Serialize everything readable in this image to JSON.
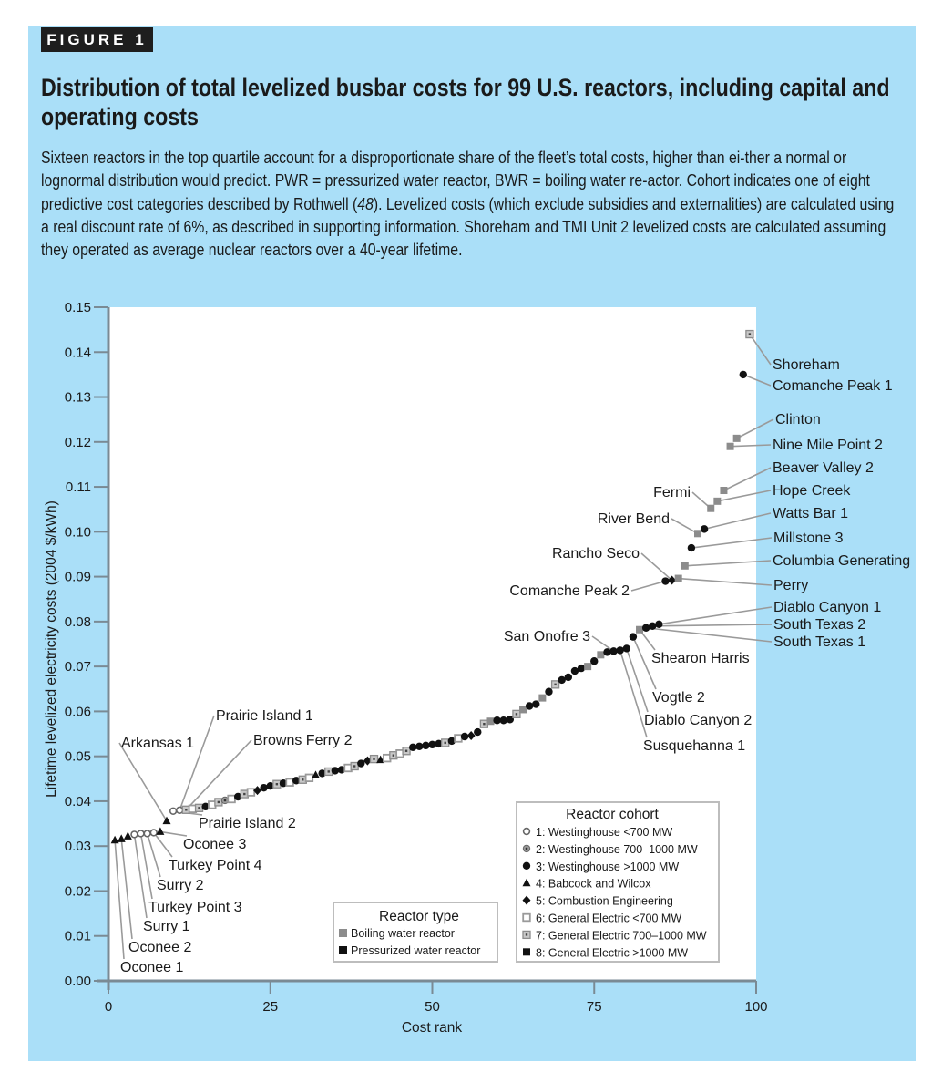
{
  "figure_tag": "FIGURE 1",
  "title": "Distribution of total levelized busbar costs for 99 U.S. reactors, including capital and operating costs",
  "caption": {
    "part1": "Sixteen reactors in the top quartile account for a disproportionate share of the fleet’s total costs, higher than ei-ther a normal or lognormal distribution would predict. PWR = pressurized water reactor, BWR = boiling water re-actor. Cohort indicates one of eight predictive cost categories described by Rothwell (",
    "ref": "48",
    "part2": "). Levelized costs (which exclude subsidies and externalities) are calculated using a real discount rate of 6%, as described in supporting information. Shoreham and TMI Unit 2 levelized costs are calculated assuming they operated as average nuclear reactors over a 40-year lifetime."
  },
  "colors": {
    "panel": "#aadff8",
    "plot_bg": "#ffffff",
    "bwr": "#8c8c8c",
    "pwr": "#111111",
    "axis": "#7a8a94",
    "leader": "#9a9a9a"
  },
  "chart_data": {
    "type": "scatter",
    "xlabel": "Cost rank",
    "ylabel": "Lifetime levelized electricity costs (2004 $/kWh)",
    "xlim": [
      0,
      100
    ],
    "ylim": [
      0,
      0.15
    ],
    "xticks": [
      "0",
      "25",
      "50",
      "75",
      "100"
    ],
    "xtick_values": [
      0,
      25,
      50,
      75,
      100
    ],
    "yticks": [
      "0.00",
      "0.01",
      "0.02",
      "0.03",
      "0.04",
      "0.05",
      "0.06",
      "0.07",
      "0.08",
      "0.09",
      "0.10",
      "0.11",
      "0.12",
      "0.13",
      "0.14",
      "0.15"
    ],
    "ytick_values": [
      0,
      0.01,
      0.02,
      0.03,
      0.04,
      0.05,
      0.06,
      0.07,
      0.08,
      0.09,
      0.1,
      0.11,
      0.12,
      0.13,
      0.14,
      0.15
    ],
    "grid": false,
    "series": [
      {
        "name": "Boiling water reactor",
        "type": "BWR"
      },
      {
        "name": "Pressurized water reactor",
        "type": "PWR"
      }
    ],
    "points": [
      {
        "rank": 1,
        "value": 0.0313,
        "type": "PWR",
        "cohort": 4
      },
      {
        "rank": 2,
        "value": 0.0316,
        "type": "PWR",
        "cohort": 4
      },
      {
        "rank": 3,
        "value": 0.0322,
        "type": "PWR",
        "cohort": 4
      },
      {
        "rank": 4,
        "value": 0.0326,
        "type": "PWR",
        "cohort": 1
      },
      {
        "rank": 5,
        "value": 0.0328,
        "type": "PWR",
        "cohort": 1
      },
      {
        "rank": 6,
        "value": 0.0328,
        "type": "PWR",
        "cohort": 1
      },
      {
        "rank": 7,
        "value": 0.033,
        "type": "PWR",
        "cohort": 1
      },
      {
        "rank": 8,
        "value": 0.0332,
        "type": "PWR",
        "cohort": 4
      },
      {
        "rank": 9,
        "value": 0.0356,
        "type": "PWR",
        "cohort": 4
      },
      {
        "rank": 10,
        "value": 0.0378,
        "type": "PWR",
        "cohort": 1
      },
      {
        "rank": 11,
        "value": 0.038,
        "type": "PWR",
        "cohort": 1
      },
      {
        "rank": 12,
        "value": 0.0381,
        "type": "BWR",
        "cohort": 7
      },
      {
        "rank": 13,
        "value": 0.0383,
        "type": "BWR",
        "cohort": 6
      },
      {
        "rank": 14,
        "value": 0.0385,
        "type": "BWR",
        "cohort": 7
      },
      {
        "rank": 15,
        "value": 0.0388,
        "type": "PWR",
        "cohort": 3
      },
      {
        "rank": 16,
        "value": 0.0392,
        "type": "BWR",
        "cohort": 6
      },
      {
        "rank": 17,
        "value": 0.0398,
        "type": "BWR",
        "cohort": 7
      },
      {
        "rank": 18,
        "value": 0.0402,
        "type": "PWR",
        "cohort": 2
      },
      {
        "rank": 19,
        "value": 0.0405,
        "type": "BWR",
        "cohort": 6
      },
      {
        "rank": 20,
        "value": 0.041,
        "type": "PWR",
        "cohort": 3
      },
      {
        "rank": 21,
        "value": 0.0416,
        "type": "BWR",
        "cohort": 7
      },
      {
        "rank": 22,
        "value": 0.042,
        "type": "BWR",
        "cohort": 6
      },
      {
        "rank": 23,
        "value": 0.0424,
        "type": "PWR",
        "cohort": 5
      },
      {
        "rank": 24,
        "value": 0.043,
        "type": "PWR",
        "cohort": 3
      },
      {
        "rank": 25,
        "value": 0.0434,
        "type": "PWR",
        "cohort": 3
      },
      {
        "rank": 26,
        "value": 0.0438,
        "type": "BWR",
        "cohort": 7
      },
      {
        "rank": 27,
        "value": 0.044,
        "type": "PWR",
        "cohort": 3
      },
      {
        "rank": 28,
        "value": 0.0442,
        "type": "BWR",
        "cohort": 6
      },
      {
        "rank": 29,
        "value": 0.0446,
        "type": "PWR",
        "cohort": 3
      },
      {
        "rank": 30,
        "value": 0.0448,
        "type": "BWR",
        "cohort": 7
      },
      {
        "rank": 31,
        "value": 0.0452,
        "type": "BWR",
        "cohort": 6
      },
      {
        "rank": 32,
        "value": 0.0458,
        "type": "PWR",
        "cohort": 4
      },
      {
        "rank": 33,
        "value": 0.0462,
        "type": "PWR",
        "cohort": 3
      },
      {
        "rank": 34,
        "value": 0.0466,
        "type": "BWR",
        "cohort": 7
      },
      {
        "rank": 35,
        "value": 0.0468,
        "type": "PWR",
        "cohort": 3
      },
      {
        "rank": 36,
        "value": 0.047,
        "type": "PWR",
        "cohort": 3
      },
      {
        "rank": 37,
        "value": 0.0474,
        "type": "BWR",
        "cohort": 6
      },
      {
        "rank": 38,
        "value": 0.0478,
        "type": "BWR",
        "cohort": 7
      },
      {
        "rank": 39,
        "value": 0.0484,
        "type": "PWR",
        "cohort": 3
      },
      {
        "rank": 40,
        "value": 0.049,
        "type": "PWR",
        "cohort": 5
      },
      {
        "rank": 41,
        "value": 0.0494,
        "type": "BWR",
        "cohort": 7
      },
      {
        "rank": 42,
        "value": 0.0492,
        "type": "PWR",
        "cohort": 4
      },
      {
        "rank": 43,
        "value": 0.0496,
        "type": "BWR",
        "cohort": 6
      },
      {
        "rank": 44,
        "value": 0.0502,
        "type": "BWR",
        "cohort": 7
      },
      {
        "rank": 45,
        "value": 0.0506,
        "type": "BWR",
        "cohort": 6
      },
      {
        "rank": 46,
        "value": 0.0512,
        "type": "BWR",
        "cohort": 7
      },
      {
        "rank": 47,
        "value": 0.052,
        "type": "PWR",
        "cohort": 3
      },
      {
        "rank": 48,
        "value": 0.0522,
        "type": "PWR",
        "cohort": 3
      },
      {
        "rank": 49,
        "value": 0.0524,
        "type": "PWR",
        "cohort": 3
      },
      {
        "rank": 50,
        "value": 0.0526,
        "type": "PWR",
        "cohort": 3
      },
      {
        "rank": 51,
        "value": 0.0528,
        "type": "PWR",
        "cohort": 3
      },
      {
        "rank": 52,
        "value": 0.053,
        "type": "BWR",
        "cohort": 7
      },
      {
        "rank": 53,
        "value": 0.0534,
        "type": "PWR",
        "cohort": 3
      },
      {
        "rank": 54,
        "value": 0.054,
        "type": "BWR",
        "cohort": 6
      },
      {
        "rank": 55,
        "value": 0.0544,
        "type": "PWR",
        "cohort": 3
      },
      {
        "rank": 56,
        "value": 0.0546,
        "type": "PWR",
        "cohort": 5
      },
      {
        "rank": 57,
        "value": 0.0554,
        "type": "PWR",
        "cohort": 3
      },
      {
        "rank": 58,
        "value": 0.0572,
        "type": "BWR",
        "cohort": 7
      },
      {
        "rank": 59,
        "value": 0.0578,
        "type": "BWR",
        "cohort": 8
      },
      {
        "rank": 60,
        "value": 0.058,
        "type": "PWR",
        "cohort": 3
      },
      {
        "rank": 61,
        "value": 0.058,
        "type": "PWR",
        "cohort": 3
      },
      {
        "rank": 62,
        "value": 0.0582,
        "type": "PWR",
        "cohort": 3
      },
      {
        "rank": 63,
        "value": 0.0594,
        "type": "BWR",
        "cohort": 7
      },
      {
        "rank": 64,
        "value": 0.0604,
        "type": "BWR",
        "cohort": 8
      },
      {
        "rank": 65,
        "value": 0.0612,
        "type": "PWR",
        "cohort": 3
      },
      {
        "rank": 66,
        "value": 0.0616,
        "type": "PWR",
        "cohort": 3
      },
      {
        "rank": 67,
        "value": 0.063,
        "type": "BWR",
        "cohort": 8
      },
      {
        "rank": 68,
        "value": 0.0644,
        "type": "PWR",
        "cohort": 3
      },
      {
        "rank": 69,
        "value": 0.066,
        "type": "BWR",
        "cohort": 7
      },
      {
        "rank": 70,
        "value": 0.067,
        "type": "PWR",
        "cohort": 3
      },
      {
        "rank": 71,
        "value": 0.0676,
        "type": "PWR",
        "cohort": 3
      },
      {
        "rank": 72,
        "value": 0.069,
        "type": "PWR",
        "cohort": 3
      },
      {
        "rank": 73,
        "value": 0.0696,
        "type": "PWR",
        "cohort": 3
      },
      {
        "rank": 74,
        "value": 0.07,
        "type": "BWR",
        "cohort": 8
      },
      {
        "rank": 75,
        "value": 0.0712,
        "type": "PWR",
        "cohort": 3
      },
      {
        "rank": 76,
        "value": 0.0726,
        "type": "BWR",
        "cohort": 8
      },
      {
        "rank": 77,
        "value": 0.0732,
        "type": "PWR",
        "cohort": 3
      },
      {
        "rank": 78,
        "value": 0.0734,
        "type": "PWR",
        "cohort": 3
      },
      {
        "rank": 79,
        "value": 0.0736,
        "type": "PWR",
        "cohort": 3
      },
      {
        "rank": 80,
        "value": 0.074,
        "type": "PWR",
        "cohort": 3
      },
      {
        "rank": 81,
        "value": 0.0766,
        "type": "PWR",
        "cohort": 3
      },
      {
        "rank": 82,
        "value": 0.0782,
        "type": "BWR",
        "cohort": 8
      },
      {
        "rank": 83,
        "value": 0.0786,
        "type": "PWR",
        "cohort": 3
      },
      {
        "rank": 84,
        "value": 0.079,
        "type": "PWR",
        "cohort": 3
      },
      {
        "rank": 85,
        "value": 0.0794,
        "type": "PWR",
        "cohort": 3
      },
      {
        "rank": 86,
        "value": 0.089,
        "type": "PWR",
        "cohort": 3
      },
      {
        "rank": 87,
        "value": 0.0892,
        "type": "PWR",
        "cohort": 5
      },
      {
        "rank": 88,
        "value": 0.0896,
        "type": "BWR",
        "cohort": 8
      },
      {
        "rank": 89,
        "value": 0.0924,
        "type": "BWR",
        "cohort": 8
      },
      {
        "rank": 90,
        "value": 0.0964,
        "type": "PWR",
        "cohort": 3
      },
      {
        "rank": 91,
        "value": 0.0996,
        "type": "BWR",
        "cohort": 8
      },
      {
        "rank": 92,
        "value": 0.1006,
        "type": "PWR",
        "cohort": 3
      },
      {
        "rank": 93,
        "value": 0.1052,
        "type": "BWR",
        "cohort": 8
      },
      {
        "rank": 94,
        "value": 0.1068,
        "type": "BWR",
        "cohort": 8
      },
      {
        "rank": 95,
        "value": 0.1092,
        "type": "BWR",
        "cohort": 8
      },
      {
        "rank": 96,
        "value": 0.119,
        "type": "BWR",
        "cohort": 8
      },
      {
        "rank": 97,
        "value": 0.1208,
        "type": "BWR",
        "cohort": 8
      },
      {
        "rank": 98,
        "value": 0.135,
        "type": "PWR",
        "cohort": 3
      },
      {
        "rank": 99,
        "value": 0.144,
        "type": "BWR",
        "cohort": 7
      }
    ],
    "annotations": [
      {
        "label": "Shoreham",
        "rank": 99
      },
      {
        "label": "Comanche Peak 1",
        "rank": 98
      },
      {
        "label": "Clinton",
        "rank": 97
      },
      {
        "label": "Nine Mile Point 2",
        "rank": 96
      },
      {
        "label": "Beaver Valley 2",
        "rank": 95
      },
      {
        "label": "Hope Creek",
        "rank": 94
      },
      {
        "label": "Fermi",
        "rank": 93
      },
      {
        "label": "Watts Bar 1",
        "rank": 92
      },
      {
        "label": "River Bend",
        "rank": 91
      },
      {
        "label": "Millstone 3",
        "rank": 90
      },
      {
        "label": "Columbia Generating",
        "rank": 89
      },
      {
        "label": "Rancho Seco",
        "rank": 87
      },
      {
        "label": "Perry",
        "rank": 88
      },
      {
        "label": "Comanche Peak 2",
        "rank": 86
      },
      {
        "label": "Diablo Canyon 1",
        "rank": 85
      },
      {
        "label": "South Texas 2",
        "rank": 84
      },
      {
        "label": "South Texas 1",
        "rank": 83
      },
      {
        "label": "San Onofre 3",
        "rank": 78
      },
      {
        "label": "Shearon Harris",
        "rank": 82
      },
      {
        "label": "Vogtle 2",
        "rank": 81
      },
      {
        "label": "Diablo Canyon 2",
        "rank": 80
      },
      {
        "label": "Susquehanna 1",
        "rank": 79
      },
      {
        "label": "Prairie Island 1",
        "rank": 11
      },
      {
        "label": "Browns Ferry 2",
        "rank": 12
      },
      {
        "label": "Arkansas 1",
        "rank": 9
      },
      {
        "label": "Prairie Island 2",
        "rank": 10
      },
      {
        "label": "Oconee 3",
        "rank": 8
      },
      {
        "label": "Turkey Point 4",
        "rank": 7
      },
      {
        "label": "Surry 2",
        "rank": 6
      },
      {
        "label": "Turkey Point 3",
        "rank": 5
      },
      {
        "label": "Surry 1",
        "rank": 4
      },
      {
        "label": "Oconee 2",
        "rank": 2
      },
      {
        "label": "Oconee 1",
        "rank": 1
      }
    ],
    "legend_type": {
      "title": "Reactor type",
      "placement": "bottom-center",
      "items": [
        {
          "label": "Boiling water reactor",
          "type": "BWR"
        },
        {
          "label": "Pressurized water reactor",
          "type": "PWR"
        }
      ]
    },
    "legend_cohort": {
      "title": "Reactor cohort",
      "placement": "bottom-right",
      "items": [
        {
          "label": "1: Westinghouse <700 MW",
          "marker": "open-circle"
        },
        {
          "label": "2: Westinghouse 700–1000 MW",
          "marker": "dotted-circle"
        },
        {
          "label": "3: Westinghouse >1000 MW",
          "marker": "filled-circle"
        },
        {
          "label": "4: Babcock and Wilcox",
          "marker": "triangle"
        },
        {
          "label": "5: Combustion Engineering",
          "marker": "diamond"
        },
        {
          "label": "6: General Electric <700 MW",
          "marker": "open-square"
        },
        {
          "label": "7: General Electric 700–1000 MW",
          "marker": "dotted-square"
        },
        {
          "label": "8: General Electric >1000 MW",
          "marker": "filled-square"
        }
      ]
    }
  }
}
